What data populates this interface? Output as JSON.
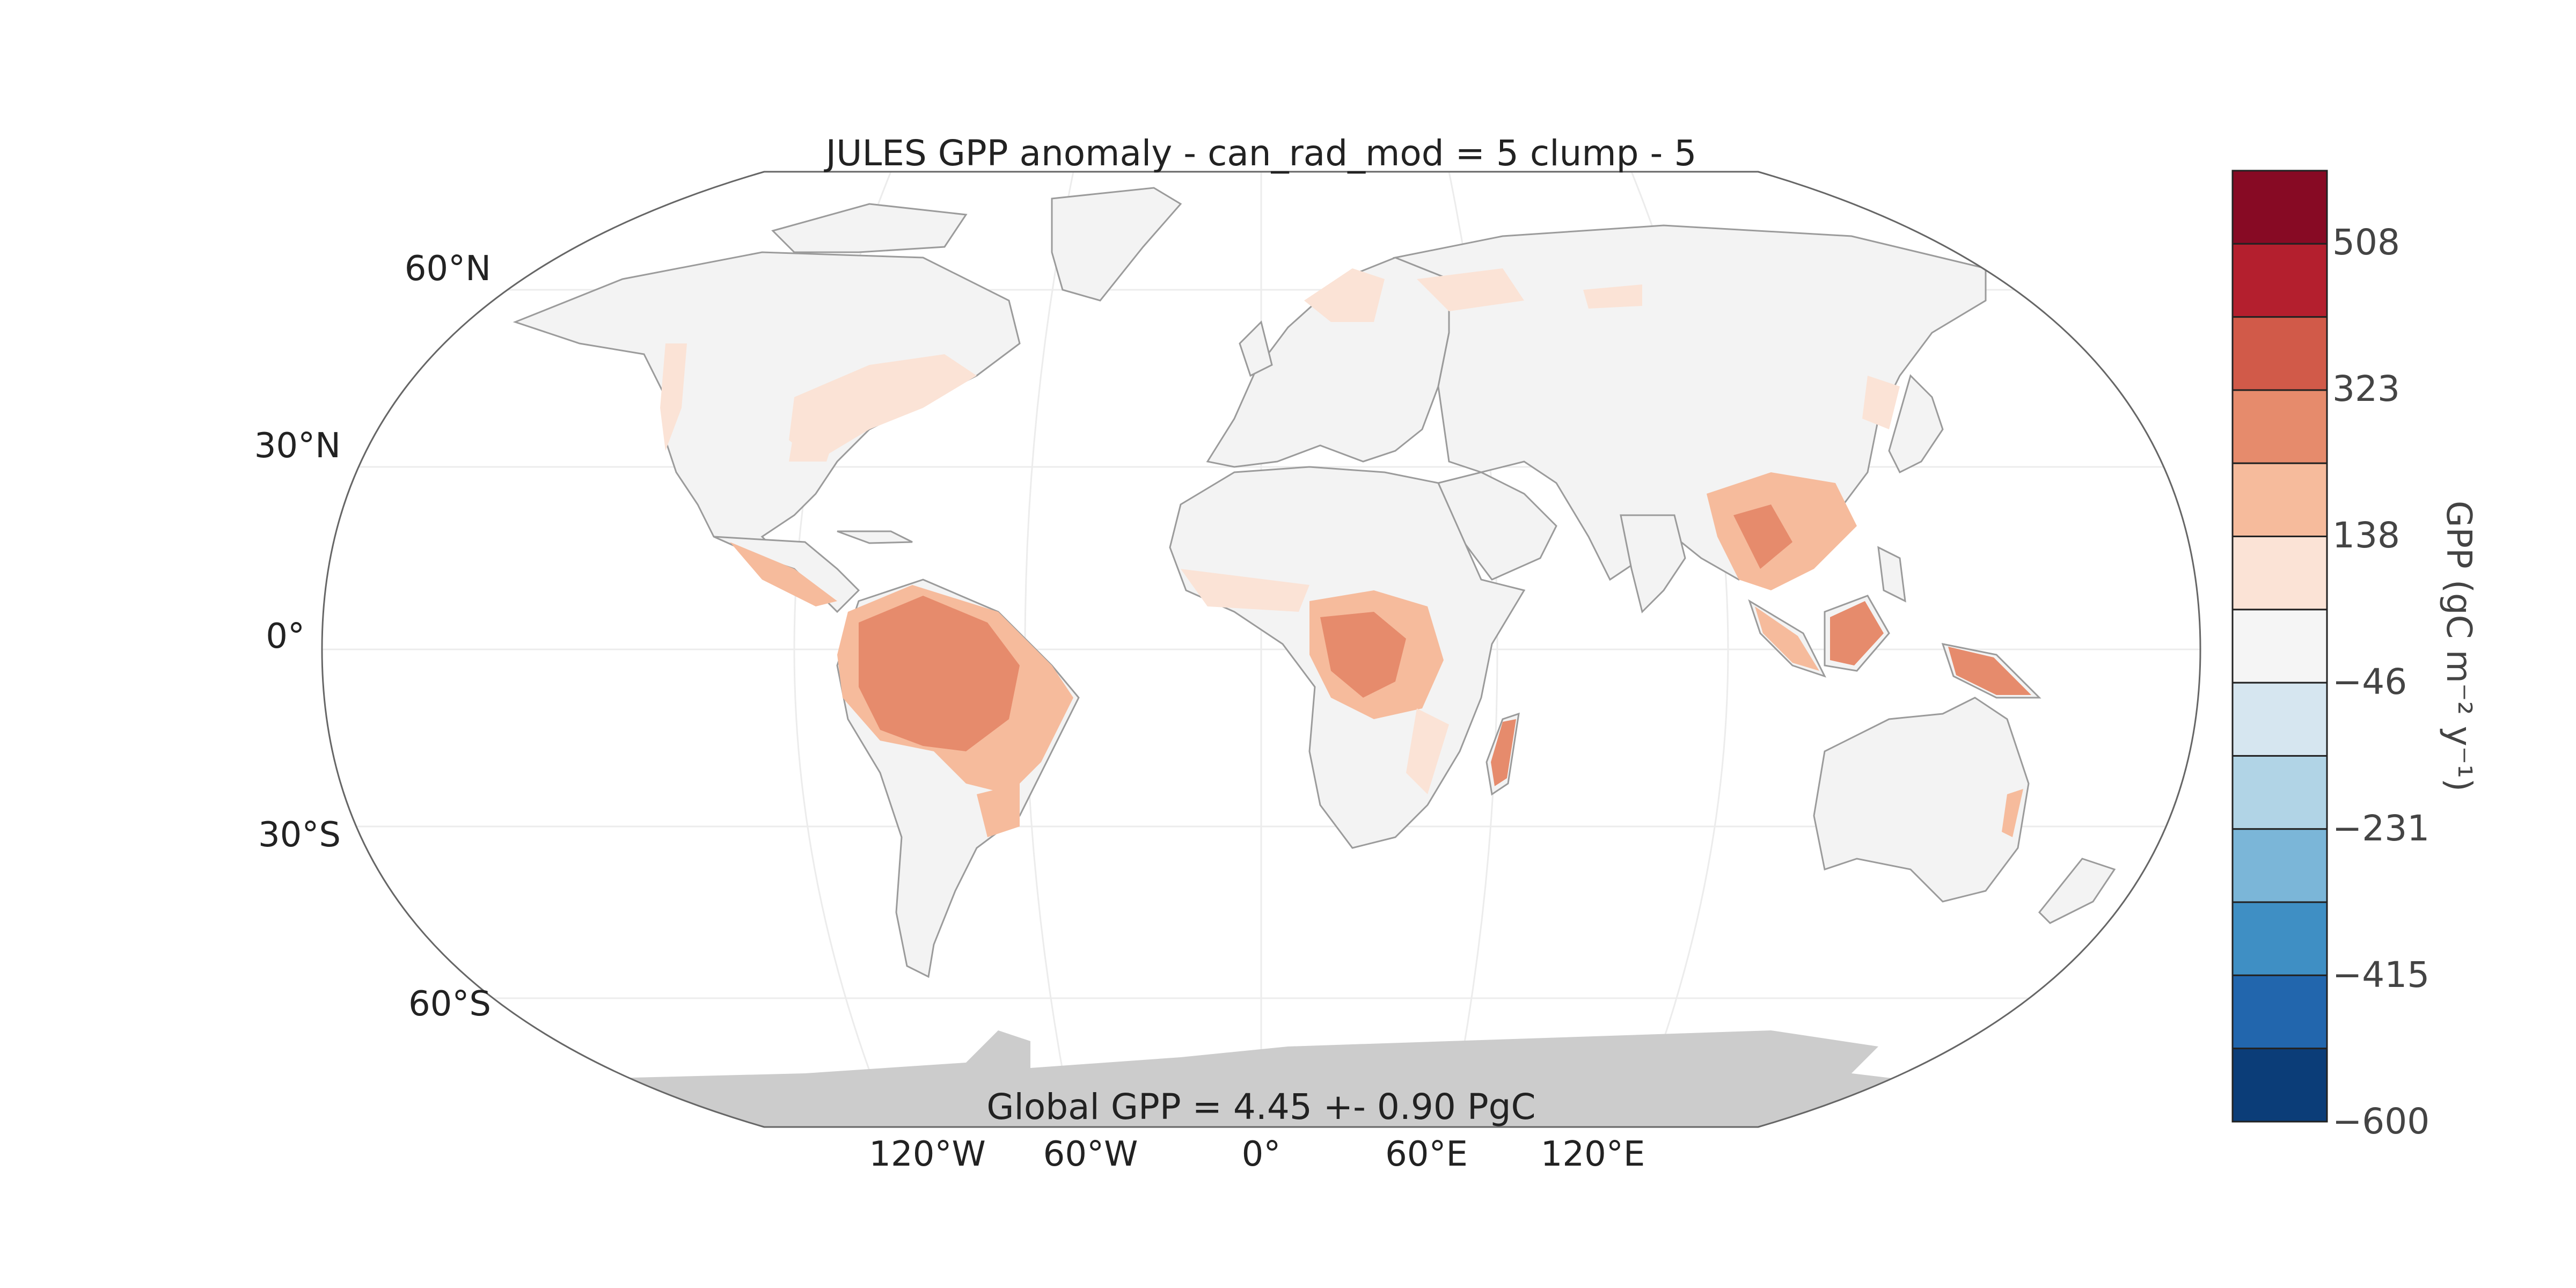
{
  "title": "JULES GPP anomaly - can_rad_mod = 5 clump - 5",
  "footer": "Global GPP = 4.45 +- 0.90 PgC",
  "lat_labels": [
    "60°N",
    "30°N",
    "0°",
    "30°S",
    "60°S"
  ],
  "lon_labels": [
    "120°W",
    "60°W",
    "0°",
    "60°E",
    "120°E"
  ],
  "colorbar": {
    "label": "GPP (gC m⁻² y⁻¹)",
    "tick_labels": [
      "508",
      "323",
      "138",
      "−46",
      "−231",
      "−415",
      "−600"
    ],
    "colors_top_to_bottom": [
      "#870a24",
      "#b41f2e",
      "#d15a49",
      "#e68b6c",
      "#f6bb9c",
      "#fbe3d6",
      "#f5f5f5",
      "#d6e6f0",
      "#b1d4e6",
      "#7bb6d8",
      "#3f8fc4",
      "#2266ad",
      "#0b3d78"
    ]
  },
  "colors": {
    "land": "#f3f3f3",
    "coast": "#9b9b9b",
    "antarctica": "#cccccc",
    "anomaly_light": "#fbe3d6",
    "anomaly_low": "#f6bb9c",
    "anomaly_mid": "#e68b6c",
    "anomaly_high": "#d15a49"
  }
}
